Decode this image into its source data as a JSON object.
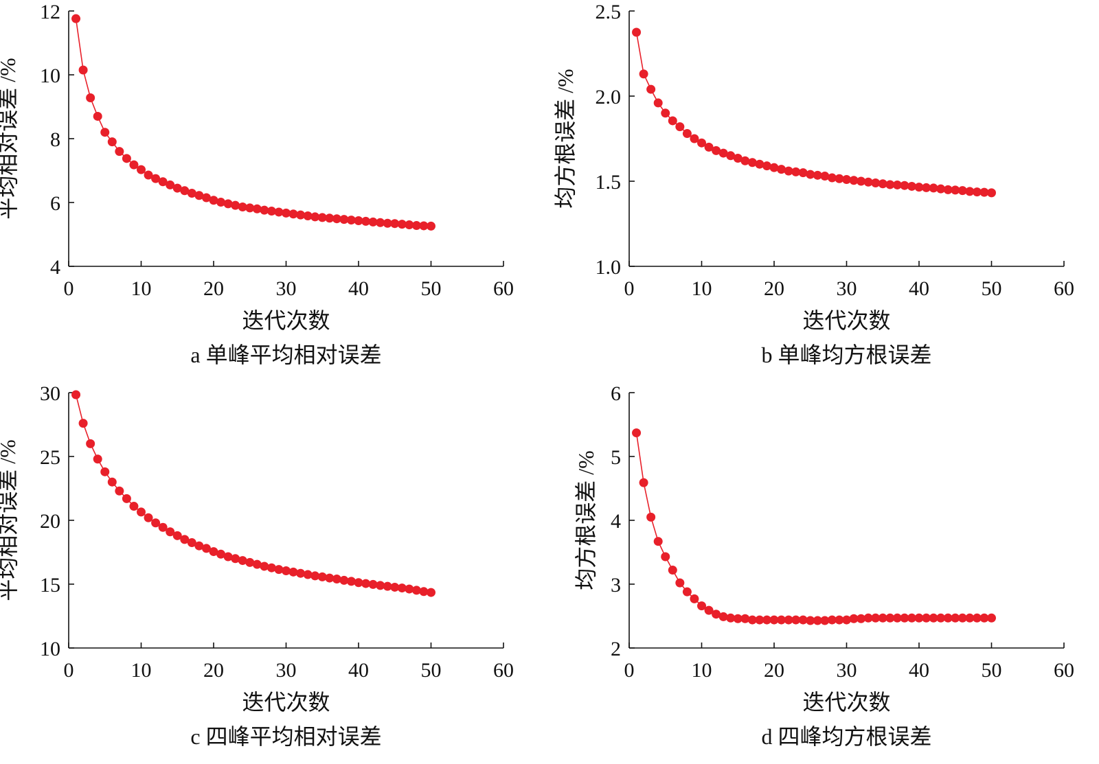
{
  "chart_data": [
    {
      "type": "line",
      "caption": "a 单峰平均相对误差",
      "xlabel": "迭代次数",
      "ylabel": "平均相对误差 /%",
      "xlim": [
        0,
        60
      ],
      "xticks": [
        0,
        10,
        20,
        30,
        40,
        50,
        60
      ],
      "ylim": [
        4,
        12
      ],
      "yticks": [
        4,
        6,
        8,
        10,
        12
      ],
      "color": "#e8202a",
      "x_start": 1,
      "values": [
        11.76,
        10.15,
        9.28,
        8.7,
        8.2,
        7.9,
        7.6,
        7.38,
        7.18,
        7.03,
        6.86,
        6.75,
        6.65,
        6.55,
        6.45,
        6.37,
        6.29,
        6.22,
        6.15,
        6.07,
        6.01,
        5.96,
        5.91,
        5.86,
        5.83,
        5.8,
        5.76,
        5.73,
        5.7,
        5.67,
        5.64,
        5.61,
        5.58,
        5.55,
        5.53,
        5.51,
        5.49,
        5.47,
        5.45,
        5.43,
        5.41,
        5.39,
        5.37,
        5.35,
        5.34,
        5.32,
        5.3,
        5.28,
        5.27,
        5.26
      ]
    },
    {
      "type": "line",
      "caption": "b 单峰均方根误差",
      "xlabel": "迭代次数",
      "ylabel": "均方根误差 /%",
      "xlim": [
        0,
        60
      ],
      "xticks": [
        0,
        10,
        20,
        30,
        40,
        50,
        60
      ],
      "ylim": [
        1.0,
        2.5
      ],
      "yticks": [
        "1.0",
        "1.5",
        "2.0",
        "2.5"
      ],
      "color": "#e8202a",
      "x_start": 1,
      "values": [
        2.375,
        2.13,
        2.04,
        1.96,
        1.9,
        1.855,
        1.82,
        1.78,
        1.75,
        1.725,
        1.7,
        1.68,
        1.665,
        1.65,
        1.635,
        1.62,
        1.61,
        1.6,
        1.59,
        1.58,
        1.57,
        1.56,
        1.555,
        1.55,
        1.54,
        1.535,
        1.53,
        1.52,
        1.515,
        1.51,
        1.505,
        1.5,
        1.495,
        1.49,
        1.485,
        1.48,
        1.478,
        1.475,
        1.47,
        1.465,
        1.462,
        1.46,
        1.455,
        1.45,
        1.448,
        1.445,
        1.44,
        1.437,
        1.435,
        1.432
      ]
    },
    {
      "type": "line",
      "caption": "c 四峰平均相对误差",
      "xlabel": "迭代次数",
      "ylabel": "平均相对误差 /%",
      "xlim": [
        0,
        60
      ],
      "xticks": [
        0,
        10,
        20,
        30,
        40,
        50,
        60
      ],
      "ylim": [
        10,
        30
      ],
      "yticks": [
        10,
        15,
        20,
        25,
        30
      ],
      "color": "#e8202a",
      "x_start": 1,
      "values": [
        29.84,
        27.6,
        26.0,
        24.8,
        23.8,
        23.0,
        22.3,
        21.7,
        21.1,
        20.65,
        20.2,
        19.8,
        19.45,
        19.1,
        18.8,
        18.5,
        18.25,
        18.0,
        17.8,
        17.55,
        17.35,
        17.15,
        17.0,
        16.85,
        16.7,
        16.55,
        16.4,
        16.28,
        16.15,
        16.05,
        15.95,
        15.85,
        15.75,
        15.65,
        15.57,
        15.48,
        15.4,
        15.3,
        15.22,
        15.12,
        15.05,
        14.98,
        14.9,
        14.83,
        14.76,
        14.7,
        14.62,
        14.52,
        14.42,
        14.35
      ]
    },
    {
      "type": "line",
      "caption": "d 四峰均方根误差",
      "xlabel": "迭代次数",
      "ylabel": "均方根误差 /%",
      "xlim": [
        0,
        60
      ],
      "xticks": [
        0,
        10,
        20,
        30,
        40,
        50,
        60
      ],
      "ylim": [
        2,
        6
      ],
      "yticks": [
        2,
        3,
        4,
        5,
        6
      ],
      "color": "#e8202a",
      "x_start": 1,
      "values": [
        5.37,
        4.59,
        4.05,
        3.67,
        3.43,
        3.22,
        3.02,
        2.88,
        2.77,
        2.66,
        2.59,
        2.53,
        2.49,
        2.47,
        2.46,
        2.46,
        2.44,
        2.44,
        2.44,
        2.44,
        2.44,
        2.44,
        2.44,
        2.44,
        2.43,
        2.43,
        2.43,
        2.44,
        2.44,
        2.44,
        2.46,
        2.46,
        2.47,
        2.47,
        2.47,
        2.47,
        2.47,
        2.47,
        2.47,
        2.47,
        2.47,
        2.47,
        2.47,
        2.47,
        2.47,
        2.47,
        2.47,
        2.47,
        2.47,
        2.47
      ]
    }
  ]
}
